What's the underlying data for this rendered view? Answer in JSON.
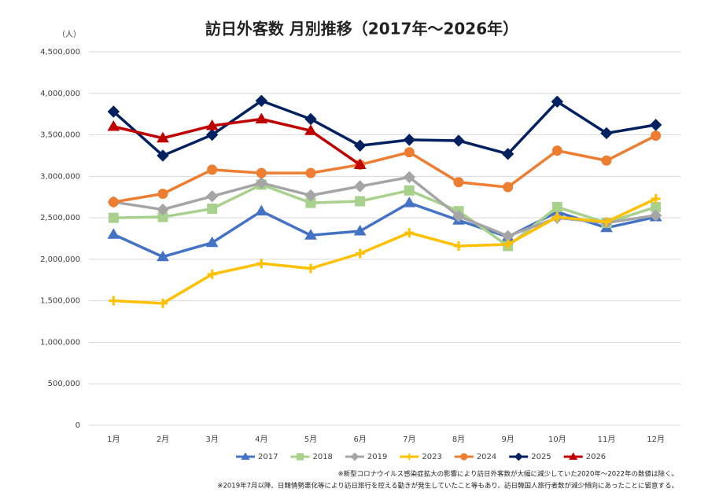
{
  "chart_data": {
    "type": "line",
    "title": "訪日外客数 月別推移（2017年～2026年）",
    "y_unit": "（人）",
    "notes": [
      "※新型コロナウイルス感染症拡大の影響により訪日外客数が大幅に減少していた2020年～2022年の数値は除く。",
      "※2019年7月以降、日韓情勢悪化等により訪日旅行を控える動きが発生していたこと等もあり、訪日韓国人旅行者数が減少傾向にあったことに留意する。"
    ],
    "categories": [
      "1月",
      "2月",
      "3月",
      "4月",
      "5月",
      "6月",
      "7月",
      "8月",
      "9月",
      "10月",
      "11月",
      "12月"
    ],
    "ylim": [
      0,
      4500000
    ],
    "yticks": [
      0,
      {
        "value": 500000,
        "label": "500,000"
      },
      {
        "value": 1000000,
        "label": "1,000,000"
      },
      {
        "value": 1500000,
        "label": "1,500,000"
      },
      {
        "value": 2000000,
        "label": "2,000,000"
      },
      {
        "value": 2500000,
        "label": "2,500,000"
      },
      {
        "value": 3000000,
        "label": "3,000,000"
      },
      {
        "value": 3500000,
        "label": "3,500,000"
      },
      {
        "value": 4000000,
        "label": "4,000,000"
      },
      {
        "value": 4500000,
        "label": "4,500,000"
      }
    ],
    "grid": true,
    "legend": "bottom",
    "series": [
      {
        "name": "2017",
        "color": "#4472c4",
        "marker": "triangle",
        "values": [
          2300000,
          2030000,
          2200000,
          2580000,
          2290000,
          2340000,
          2680000,
          2470000,
          2270000,
          2570000,
          2380000,
          2510000
        ]
      },
      {
        "name": "2018",
        "color": "#a9d18e",
        "marker": "square",
        "values": [
          2500000,
          2510000,
          2610000,
          2900000,
          2680000,
          2700000,
          2830000,
          2580000,
          2160000,
          2630000,
          2440000,
          2630000
        ]
      },
      {
        "name": "2019",
        "color": "#a5a5a5",
        "marker": "diamond",
        "values": [
          2690000,
          2600000,
          2760000,
          2920000,
          2770000,
          2880000,
          2990000,
          2520000,
          2280000,
          2500000,
          2440000,
          2530000
        ]
      },
      {
        "name": "2023",
        "color": "#ffc000",
        "marker": "plus",
        "values": [
          1500000,
          1470000,
          1820000,
          1950000,
          1890000,
          2070000,
          2320000,
          2160000,
          2180000,
          2510000,
          2450000,
          2730000
        ]
      },
      {
        "name": "2024",
        "color": "#ed7d31",
        "marker": "circle",
        "values": [
          2690000,
          2790000,
          3080000,
          3040000,
          3040000,
          3140000,
          3290000,
          2930000,
          2870000,
          3310000,
          3190000,
          3490000
        ]
      },
      {
        "name": "2025",
        "color": "#002060",
        "marker": "diamond",
        "values": [
          3780000,
          3250000,
          3500000,
          3910000,
          3690000,
          3370000,
          3440000,
          3430000,
          3270000,
          3900000,
          3520000,
          3620000
        ]
      },
      {
        "name": "2026",
        "color": "#c00000",
        "marker": "triangle",
        "values": [
          3600000,
          3460000,
          3610000,
          3690000,
          3550000,
          3140000,
          null,
          null,
          null,
          null,
          null,
          null
        ]
      }
    ]
  }
}
